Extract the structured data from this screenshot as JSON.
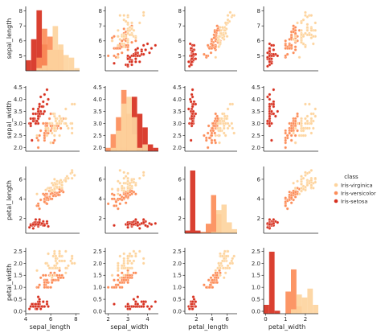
{
  "chart_data": {
    "type": "scatter",
    "subtype": "pairplot",
    "variables": [
      "sepal_length",
      "sepal_width",
      "petal_length",
      "petal_width"
    ],
    "axis_labels": [
      "sepal_length",
      "sepal_width",
      "petal_length",
      "petal_width"
    ],
    "ticks": [
      [
        5,
        6,
        7,
        8
      ],
      [
        2.0,
        2.5,
        3.0,
        3.5,
        4.0,
        4.5
      ],
      [
        2,
        4,
        6
      ],
      [
        0.0,
        0.5,
        1.0,
        1.5,
        2.0,
        2.5
      ]
    ],
    "tick_labels_y": [
      [
        "5",
        "6",
        "7",
        "8"
      ],
      [
        "2.0",
        "2.5",
        "3.0",
        "3.5",
        "4.0",
        "4.5"
      ],
      [
        "2",
        "4",
        "6"
      ],
      [
        "0.0",
        "0.5",
        "1.0",
        "1.5",
        "2.0",
        "2.5"
      ]
    ],
    "tick_labels_x": [
      [
        "4",
        "6",
        "8"
      ],
      [
        "2",
        "3",
        "4"
      ],
      [
        "2",
        "4",
        "6"
      ],
      [
        "0",
        "1",
        "2"
      ]
    ],
    "ranges": [
      [
        4.0,
        8.3
      ],
      [
        1.85,
        4.55
      ],
      [
        0.5,
        7.3
      ],
      [
        -0.1,
        2.65
      ]
    ],
    "legend": {
      "title": "class",
      "placement": "right",
      "entries": [
        {
          "name": "Iris-virginica",
          "color": "#fdd49e"
        },
        {
          "name": "Iris-versicolor",
          "color": "#fc8d59"
        },
        {
          "name": "Iris-setosa",
          "color": "#d7301f"
        }
      ]
    },
    "species_order": [
      "Iris-setosa",
      "Iris-versicolor",
      "Iris-virginica"
    ],
    "series": [
      {
        "name": "Iris-setosa",
        "color": "#d7301f",
        "points": [
          [
            5.1,
            3.5,
            1.4,
            0.2
          ],
          [
            4.9,
            3.0,
            1.4,
            0.2
          ],
          [
            4.7,
            3.2,
            1.3,
            0.2
          ],
          [
            4.6,
            3.1,
            1.5,
            0.2
          ],
          [
            5.0,
            3.6,
            1.4,
            0.2
          ],
          [
            5.4,
            3.9,
            1.7,
            0.4
          ],
          [
            4.6,
            3.4,
            1.4,
            0.3
          ],
          [
            5.0,
            3.4,
            1.5,
            0.2
          ],
          [
            4.4,
            2.9,
            1.4,
            0.2
          ],
          [
            4.9,
            3.1,
            1.5,
            0.1
          ],
          [
            5.4,
            3.7,
            1.5,
            0.2
          ],
          [
            4.8,
            3.4,
            1.6,
            0.2
          ],
          [
            4.8,
            3.0,
            1.4,
            0.1
          ],
          [
            4.3,
            3.0,
            1.1,
            0.1
          ],
          [
            5.8,
            4.0,
            1.2,
            0.2
          ],
          [
            5.7,
            4.4,
            1.5,
            0.4
          ],
          [
            5.4,
            3.9,
            1.3,
            0.4
          ],
          [
            5.1,
            3.5,
            1.4,
            0.3
          ],
          [
            5.7,
            3.8,
            1.7,
            0.3
          ],
          [
            5.1,
            3.8,
            1.5,
            0.3
          ],
          [
            5.4,
            3.4,
            1.7,
            0.2
          ],
          [
            5.1,
            3.7,
            1.5,
            0.4
          ],
          [
            4.6,
            3.6,
            1.0,
            0.2
          ],
          [
            5.1,
            3.3,
            1.7,
            0.5
          ],
          [
            4.8,
            3.4,
            1.9,
            0.2
          ],
          [
            5.0,
            3.0,
            1.6,
            0.2
          ],
          [
            5.0,
            3.4,
            1.6,
            0.4
          ],
          [
            5.2,
            3.5,
            1.5,
            0.2
          ],
          [
            5.2,
            3.4,
            1.4,
            0.2
          ],
          [
            4.7,
            3.2,
            1.6,
            0.2
          ],
          [
            4.8,
            3.1,
            1.6,
            0.2
          ],
          [
            5.4,
            3.4,
            1.5,
            0.4
          ],
          [
            5.2,
            4.1,
            1.5,
            0.1
          ],
          [
            5.5,
            4.2,
            1.4,
            0.2
          ],
          [
            4.9,
            3.1,
            1.5,
            0.1
          ],
          [
            5.0,
            3.2,
            1.2,
            0.2
          ],
          [
            5.5,
            3.5,
            1.3,
            0.2
          ],
          [
            4.9,
            3.1,
            1.5,
            0.1
          ],
          [
            4.4,
            3.0,
            1.3,
            0.2
          ],
          [
            5.1,
            3.4,
            1.5,
            0.2
          ],
          [
            5.0,
            3.5,
            1.3,
            0.3
          ],
          [
            4.5,
            2.3,
            1.3,
            0.3
          ],
          [
            4.4,
            3.2,
            1.3,
            0.2
          ],
          [
            5.0,
            3.5,
            1.6,
            0.6
          ],
          [
            5.1,
            3.8,
            1.9,
            0.4
          ],
          [
            4.8,
            3.0,
            1.4,
            0.3
          ],
          [
            5.1,
            3.8,
            1.6,
            0.2
          ],
          [
            4.6,
            3.2,
            1.4,
            0.2
          ],
          [
            5.3,
            3.7,
            1.5,
            0.2
          ],
          [
            5.0,
            3.3,
            1.4,
            0.2
          ]
        ]
      },
      {
        "name": "Iris-versicolor",
        "color": "#fc8d59",
        "points": [
          [
            7.0,
            3.2,
            4.7,
            1.4
          ],
          [
            6.4,
            3.2,
            4.5,
            1.5
          ],
          [
            6.9,
            3.1,
            4.9,
            1.5
          ],
          [
            5.5,
            2.3,
            4.0,
            1.3
          ],
          [
            6.5,
            2.8,
            4.6,
            1.5
          ],
          [
            5.7,
            2.8,
            4.5,
            1.3
          ],
          [
            6.3,
            3.3,
            4.7,
            1.6
          ],
          [
            4.9,
            2.4,
            3.3,
            1.0
          ],
          [
            6.6,
            2.9,
            4.6,
            1.3
          ],
          [
            5.2,
            2.7,
            3.9,
            1.4
          ],
          [
            5.0,
            2.0,
            3.5,
            1.0
          ],
          [
            5.9,
            3.0,
            4.2,
            1.5
          ],
          [
            6.0,
            2.2,
            4.0,
            1.0
          ],
          [
            6.1,
            2.9,
            4.7,
            1.4
          ],
          [
            5.6,
            2.9,
            3.6,
            1.3
          ],
          [
            6.7,
            3.1,
            4.4,
            1.4
          ],
          [
            5.6,
            3.0,
            4.5,
            1.5
          ],
          [
            5.8,
            2.7,
            4.1,
            1.0
          ],
          [
            6.2,
            2.2,
            4.5,
            1.5
          ],
          [
            5.6,
            2.5,
            3.9,
            1.1
          ],
          [
            5.9,
            3.2,
            4.8,
            1.8
          ],
          [
            6.1,
            2.8,
            4.0,
            1.3
          ],
          [
            6.3,
            2.5,
            4.9,
            1.5
          ],
          [
            6.1,
            2.8,
            4.7,
            1.2
          ],
          [
            6.4,
            2.9,
            4.3,
            1.3
          ],
          [
            6.6,
            3.0,
            4.4,
            1.4
          ],
          [
            6.8,
            2.8,
            4.8,
            1.4
          ],
          [
            6.7,
            3.0,
            5.0,
            1.7
          ],
          [
            6.0,
            2.9,
            4.5,
            1.5
          ],
          [
            5.7,
            2.6,
            3.5,
            1.0
          ],
          [
            5.5,
            2.4,
            3.8,
            1.1
          ],
          [
            5.5,
            2.4,
            3.7,
            1.0
          ],
          [
            5.8,
            2.7,
            3.9,
            1.2
          ],
          [
            6.0,
            2.7,
            5.1,
            1.6
          ],
          [
            5.4,
            3.0,
            4.5,
            1.5
          ],
          [
            6.0,
            3.4,
            4.5,
            1.6
          ],
          [
            6.7,
            3.1,
            4.7,
            1.5
          ],
          [
            6.3,
            2.3,
            4.4,
            1.3
          ],
          [
            5.6,
            3.0,
            4.1,
            1.3
          ],
          [
            5.5,
            2.5,
            4.0,
            1.3
          ],
          [
            5.5,
            2.6,
            4.4,
            1.2
          ],
          [
            6.1,
            3.0,
            4.6,
            1.4
          ],
          [
            5.8,
            2.6,
            4.0,
            1.2
          ],
          [
            5.0,
            2.3,
            3.3,
            1.0
          ],
          [
            5.6,
            2.7,
            4.2,
            1.3
          ],
          [
            5.7,
            3.0,
            4.2,
            1.2
          ],
          [
            5.7,
            2.9,
            4.2,
            1.3
          ],
          [
            6.2,
            2.9,
            4.3,
            1.3
          ],
          [
            5.1,
            2.5,
            3.0,
            1.1
          ],
          [
            5.7,
            2.8,
            4.1,
            1.3
          ]
        ]
      },
      {
        "name": "Iris-virginica",
        "color": "#fdd49e",
        "points": [
          [
            6.3,
            3.3,
            6.0,
            2.5
          ],
          [
            5.8,
            2.7,
            5.1,
            1.9
          ],
          [
            7.1,
            3.0,
            5.9,
            2.1
          ],
          [
            6.3,
            2.9,
            5.6,
            1.8
          ],
          [
            6.5,
            3.0,
            5.8,
            2.2
          ],
          [
            7.6,
            3.0,
            6.6,
            2.1
          ],
          [
            4.9,
            2.5,
            4.5,
            1.7
          ],
          [
            7.3,
            2.9,
            6.3,
            1.8
          ],
          [
            6.7,
            2.5,
            5.8,
            1.8
          ],
          [
            7.2,
            3.6,
            6.1,
            2.5
          ],
          [
            6.5,
            3.2,
            5.1,
            2.0
          ],
          [
            6.4,
            2.7,
            5.3,
            1.9
          ],
          [
            6.8,
            3.0,
            5.5,
            2.1
          ],
          [
            5.7,
            2.5,
            5.0,
            2.0
          ],
          [
            5.8,
            2.8,
            5.1,
            2.4
          ],
          [
            6.4,
            3.2,
            5.3,
            2.3
          ],
          [
            6.5,
            3.0,
            5.5,
            1.8
          ],
          [
            7.7,
            3.8,
            6.7,
            2.2
          ],
          [
            7.7,
            2.6,
            6.9,
            2.3
          ],
          [
            6.0,
            2.2,
            5.0,
            1.5
          ],
          [
            6.9,
            3.2,
            5.7,
            2.3
          ],
          [
            5.6,
            2.8,
            4.9,
            2.0
          ],
          [
            7.7,
            2.8,
            6.7,
            2.0
          ],
          [
            6.3,
            2.7,
            4.9,
            1.8
          ],
          [
            6.7,
            3.3,
            5.7,
            2.1
          ],
          [
            7.2,
            3.2,
            6.0,
            1.8
          ],
          [
            6.2,
            2.8,
            4.8,
            1.8
          ],
          [
            6.1,
            3.0,
            4.9,
            1.8
          ],
          [
            6.4,
            2.8,
            5.6,
            2.1
          ],
          [
            7.2,
            3.0,
            5.8,
            1.6
          ],
          [
            7.4,
            2.8,
            6.1,
            1.9
          ],
          [
            7.9,
            3.8,
            6.4,
            2.0
          ],
          [
            6.4,
            2.8,
            5.6,
            2.2
          ],
          [
            6.3,
            2.8,
            5.1,
            1.5
          ],
          [
            6.1,
            2.6,
            5.6,
            1.4
          ],
          [
            7.7,
            3.0,
            6.1,
            2.3
          ],
          [
            6.3,
            3.4,
            5.6,
            2.4
          ],
          [
            6.4,
            3.1,
            5.5,
            1.8
          ],
          [
            6.0,
            3.0,
            4.8,
            1.8
          ],
          [
            6.9,
            3.1,
            5.4,
            2.1
          ],
          [
            6.7,
            3.1,
            5.6,
            2.4
          ],
          [
            6.9,
            3.1,
            5.1,
            2.3
          ],
          [
            5.8,
            2.7,
            5.1,
            1.9
          ],
          [
            6.8,
            3.2,
            5.9,
            2.3
          ],
          [
            6.7,
            3.3,
            5.7,
            2.5
          ],
          [
            6.7,
            3.0,
            5.2,
            2.3
          ],
          [
            6.3,
            2.5,
            5.0,
            1.9
          ],
          [
            6.5,
            3.0,
            5.2,
            2.0
          ],
          [
            6.2,
            3.4,
            5.4,
            2.3
          ],
          [
            5.9,
            3.0,
            5.1,
            1.8
          ]
        ]
      }
    ]
  }
}
